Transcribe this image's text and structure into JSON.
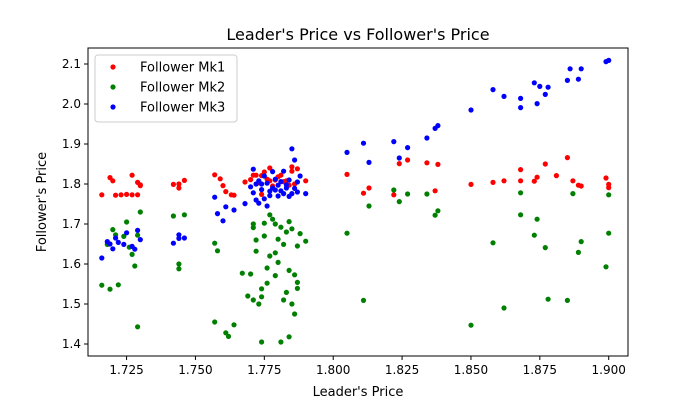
{
  "chart_data": {
    "type": "scatter",
    "title": "Leader's Price vs Follower's Price",
    "xlabel": "Leader's Price",
    "ylabel": "Follower's Price",
    "xlim": [
      1.711,
      1.907
    ],
    "ylim": [
      1.37,
      2.14
    ],
    "x_ticks": [
      "1.725",
      "1.750",
      "1.775",
      "1.800",
      "1.825",
      "1.850",
      "1.875",
      "1.900"
    ],
    "y_ticks": [
      "1.4",
      "1.5",
      "1.6",
      "1.7",
      "1.8",
      "1.9",
      "2.0",
      "2.1"
    ],
    "grid": false,
    "legend_position": "top-left",
    "series": [
      {
        "name": "Follower Mk1",
        "color": "#ff0000",
        "points": [
          [
            1.716,
            1.773
          ],
          [
            1.719,
            1.816
          ],
          [
            1.72,
            1.808
          ],
          [
            1.721,
            1.772
          ],
          [
            1.723,
            1.773
          ],
          [
            1.725,
            1.774
          ],
          [
            1.727,
            1.822
          ],
          [
            1.727,
            1.773
          ],
          [
            1.729,
            1.773
          ],
          [
            1.729,
            1.804
          ],
          [
            1.73,
            1.796
          ],
          [
            1.73,
            1.798
          ],
          [
            1.742,
            1.799
          ],
          [
            1.744,
            1.79
          ],
          [
            1.744,
            1.8
          ],
          [
            1.746,
            1.809
          ],
          [
            1.757,
            1.823
          ],
          [
            1.759,
            1.813
          ],
          [
            1.76,
            1.796
          ],
          [
            1.761,
            1.781
          ],
          [
            1.763,
            1.773
          ],
          [
            1.764,
            1.772
          ],
          [
            1.768,
            1.805
          ],
          [
            1.77,
            1.811
          ],
          [
            1.771,
            1.822
          ],
          [
            1.772,
            1.822
          ],
          [
            1.773,
            1.803
          ],
          [
            1.774,
            1.821
          ],
          [
            1.774,
            1.774
          ],
          [
            1.775,
            1.83
          ],
          [
            1.776,
            1.812
          ],
          [
            1.777,
            1.84
          ],
          [
            1.777,
            1.808
          ],
          [
            1.778,
            1.795
          ],
          [
            1.779,
            1.81
          ],
          [
            1.78,
            1.818
          ],
          [
            1.781,
            1.822
          ],
          [
            1.782,
            1.806
          ],
          [
            1.783,
            1.808
          ],
          [
            1.784,
            1.797
          ],
          [
            1.785,
            1.843
          ],
          [
            1.785,
            1.832
          ],
          [
            1.786,
            1.8
          ],
          [
            1.787,
            1.838
          ],
          [
            1.79,
            1.808
          ],
          [
            1.805,
            1.824
          ],
          [
            1.811,
            1.777
          ],
          [
            1.813,
            1.79
          ],
          [
            1.822,
            1.773
          ],
          [
            1.824,
            1.851
          ],
          [
            1.827,
            1.86
          ],
          [
            1.834,
            1.853
          ],
          [
            1.837,
            1.783
          ],
          [
            1.838,
            1.849
          ],
          [
            1.85,
            1.799
          ],
          [
            1.858,
            1.804
          ],
          [
            1.862,
            1.808
          ],
          [
            1.868,
            1.808
          ],
          [
            1.868,
            1.836
          ],
          [
            1.873,
            1.807
          ],
          [
            1.874,
            1.817
          ],
          [
            1.877,
            1.85
          ],
          [
            1.881,
            1.821
          ],
          [
            1.885,
            1.866
          ],
          [
            1.887,
            1.808
          ],
          [
            1.889,
            1.797
          ],
          [
            1.89,
            1.795
          ],
          [
            1.899,
            1.815
          ],
          [
            1.9,
            1.791
          ],
          [
            1.9,
            1.799
          ]
        ]
      },
      {
        "name": "Follower Mk2",
        "color": "#008000",
        "points": [
          [
            1.716,
            1.547
          ],
          [
            1.718,
            1.649
          ],
          [
            1.719,
            1.537
          ],
          [
            1.72,
            1.686
          ],
          [
            1.721,
            1.673
          ],
          [
            1.722,
            1.548
          ],
          [
            1.724,
            1.669
          ],
          [
            1.725,
            1.705
          ],
          [
            1.726,
            1.642
          ],
          [
            1.727,
            1.624
          ],
          [
            1.728,
            1.595
          ],
          [
            1.729,
            1.443
          ],
          [
            1.729,
            1.672
          ],
          [
            1.73,
            1.73
          ],
          [
            1.742,
            1.72
          ],
          [
            1.744,
            1.6
          ],
          [
            1.744,
            1.588
          ],
          [
            1.746,
            1.723
          ],
          [
            1.757,
            1.652
          ],
          [
            1.757,
            1.455
          ],
          [
            1.758,
            1.633
          ],
          [
            1.761,
            1.428
          ],
          [
            1.762,
            1.419
          ],
          [
            1.764,
            1.448
          ],
          [
            1.767,
            1.577
          ],
          [
            1.769,
            1.52
          ],
          [
            1.77,
            1.575
          ],
          [
            1.771,
            1.51
          ],
          [
            1.771,
            1.7
          ],
          [
            1.771,
            1.691
          ],
          [
            1.772,
            1.66
          ],
          [
            1.772,
            1.632
          ],
          [
            1.773,
            1.5
          ],
          [
            1.774,
            1.538
          ],
          [
            1.774,
            1.518
          ],
          [
            1.774,
            1.405
          ],
          [
            1.775,
            1.702
          ],
          [
            1.775,
            1.67
          ],
          [
            1.776,
            1.59
          ],
          [
            1.776,
            1.552
          ],
          [
            1.777,
            1.723
          ],
          [
            1.777,
            1.62
          ],
          [
            1.778,
            1.712
          ],
          [
            1.779,
            1.7
          ],
          [
            1.779,
            1.628
          ],
          [
            1.779,
            1.571
          ],
          [
            1.78,
            1.662
          ],
          [
            1.78,
            1.604
          ],
          [
            1.781,
            1.405
          ],
          [
            1.781,
            1.692
          ],
          [
            1.782,
            1.51
          ],
          [
            1.782,
            1.649
          ],
          [
            1.783,
            1.529
          ],
          [
            1.783,
            1.68
          ],
          [
            1.784,
            1.706
          ],
          [
            1.784,
            1.418
          ],
          [
            1.784,
            1.584
          ],
          [
            1.785,
            1.5
          ],
          [
            1.785,
            1.688
          ],
          [
            1.786,
            1.475
          ],
          [
            1.786,
            1.573
          ],
          [
            1.787,
            1.554
          ],
          [
            1.787,
            1.645
          ],
          [
            1.787,
            1.539
          ],
          [
            1.788,
            1.676
          ],
          [
            1.79,
            1.657
          ],
          [
            1.805,
            1.677
          ],
          [
            1.811,
            1.509
          ],
          [
            1.813,
            1.745
          ],
          [
            1.822,
            1.785
          ],
          [
            1.824,
            1.756
          ],
          [
            1.827,
            1.775
          ],
          [
            1.834,
            1.775
          ],
          [
            1.837,
            1.722
          ],
          [
            1.838,
            1.733
          ],
          [
            1.85,
            1.447
          ],
          [
            1.858,
            1.653
          ],
          [
            1.862,
            1.49
          ],
          [
            1.868,
            1.778
          ],
          [
            1.868,
            1.723
          ],
          [
            1.873,
            1.672
          ],
          [
            1.874,
            1.712
          ],
          [
            1.877,
            1.641
          ],
          [
            1.878,
            1.512
          ],
          [
            1.885,
            1.509
          ],
          [
            1.887,
            1.776
          ],
          [
            1.889,
            1.629
          ],
          [
            1.89,
            1.656
          ],
          [
            1.899,
            1.593
          ],
          [
            1.9,
            1.677
          ],
          [
            1.9,
            1.773
          ]
        ]
      },
      {
        "name": "Follower Mk3",
        "color": "#0000ff",
        "points": [
          [
            1.716,
            1.615
          ],
          [
            1.718,
            1.656
          ],
          [
            1.719,
            1.65
          ],
          [
            1.72,
            1.638
          ],
          [
            1.721,
            1.665
          ],
          [
            1.722,
            1.654
          ],
          [
            1.724,
            1.649
          ],
          [
            1.725,
            1.678
          ],
          [
            1.727,
            1.644
          ],
          [
            1.728,
            1.637
          ],
          [
            1.729,
            1.684
          ],
          [
            1.73,
            1.661
          ],
          [
            1.742,
            1.652
          ],
          [
            1.744,
            1.673
          ],
          [
            1.744,
            1.664
          ],
          [
            1.746,
            1.665
          ],
          [
            1.757,
            1.767
          ],
          [
            1.758,
            1.726
          ],
          [
            1.76,
            1.708
          ],
          [
            1.761,
            1.743
          ],
          [
            1.764,
            1.735
          ],
          [
            1.768,
            1.751
          ],
          [
            1.77,
            1.793
          ],
          [
            1.771,
            1.778
          ],
          [
            1.771,
            1.837
          ],
          [
            1.772,
            1.76
          ],
          [
            1.772,
            1.8
          ],
          [
            1.773,
            1.808
          ],
          [
            1.773,
            1.752
          ],
          [
            1.774,
            1.786
          ],
          [
            1.774,
            1.8
          ],
          [
            1.775,
            1.763
          ],
          [
            1.775,
            1.82
          ],
          [
            1.776,
            1.745
          ],
          [
            1.776,
            1.802
          ],
          [
            1.777,
            1.782
          ],
          [
            1.777,
            1.771
          ],
          [
            1.778,
            1.831
          ],
          [
            1.778,
            1.79
          ],
          [
            1.779,
            1.812
          ],
          [
            1.779,
            1.785
          ],
          [
            1.78,
            1.797
          ],
          [
            1.78,
            1.77
          ],
          [
            1.781,
            1.806
          ],
          [
            1.781,
            1.783
          ],
          [
            1.782,
            1.832
          ],
          [
            1.782,
            1.776
          ],
          [
            1.783,
            1.798
          ],
          [
            1.783,
            1.79
          ],
          [
            1.784,
            1.769
          ],
          [
            1.784,
            1.81
          ],
          [
            1.785,
            1.888
          ],
          [
            1.785,
            1.776
          ],
          [
            1.786,
            1.86
          ],
          [
            1.786,
            1.789
          ],
          [
            1.787,
            1.78
          ],
          [
            1.787,
            1.805
          ],
          [
            1.788,
            1.82
          ],
          [
            1.79,
            1.776
          ],
          [
            1.805,
            1.879
          ],
          [
            1.811,
            1.902
          ],
          [
            1.813,
            1.854
          ],
          [
            1.822,
            1.906
          ],
          [
            1.824,
            1.865
          ],
          [
            1.827,
            1.891
          ],
          [
            1.834,
            1.915
          ],
          [
            1.837,
            1.939
          ],
          [
            1.838,
            1.946
          ],
          [
            1.85,
            1.985
          ],
          [
            1.858,
            2.036
          ],
          [
            1.862,
            2.019
          ],
          [
            1.868,
            2.014
          ],
          [
            1.868,
            1.991
          ],
          [
            1.873,
            2.053
          ],
          [
            1.874,
            2.001
          ],
          [
            1.875,
            2.044
          ],
          [
            1.877,
            2.024
          ],
          [
            1.878,
            2.042
          ],
          [
            1.885,
            2.059
          ],
          [
            1.886,
            2.088
          ],
          [
            1.889,
            2.062
          ],
          [
            1.89,
            2.088
          ],
          [
            1.899,
            2.106
          ],
          [
            1.9,
            2.109
          ]
        ]
      }
    ]
  }
}
